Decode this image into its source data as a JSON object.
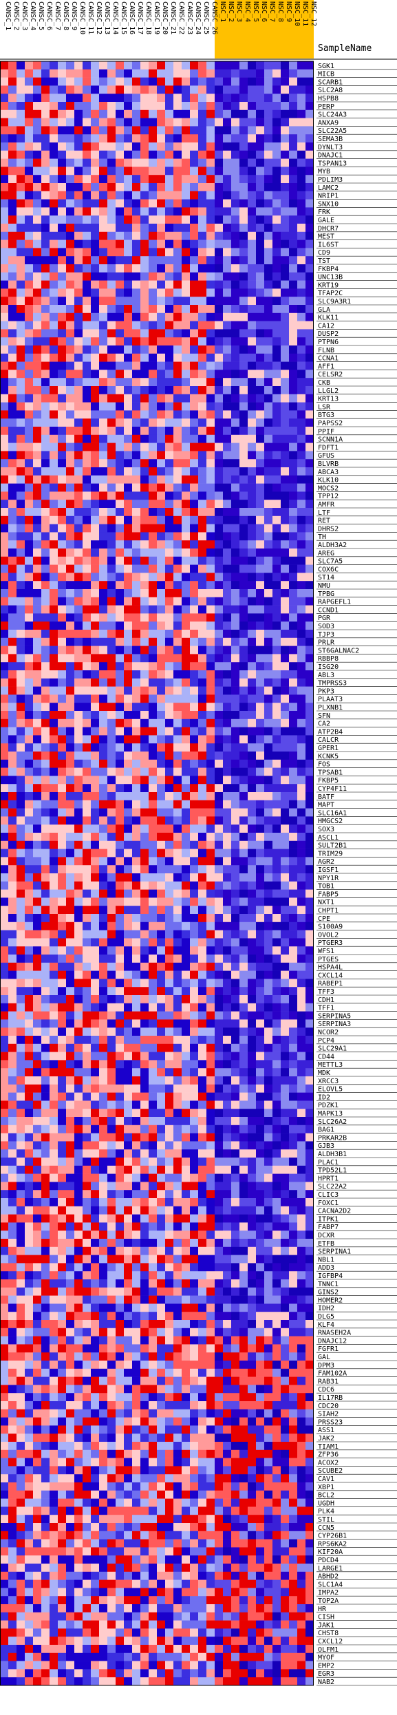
{
  "chart_data": {
    "type": "heatmap",
    "column_header_label": "SampleName",
    "groups": [
      {
        "name": "CANSC",
        "color": "#ffffff",
        "count": 26
      },
      {
        "name": "NSC",
        "color": "#ffc000",
        "count": 12
      }
    ],
    "columns": [
      "CANSC_1",
      "CANSC_2",
      "CANSC_3",
      "CANSC_4",
      "CANSC_5",
      "CANSC_6",
      "CANSC_7",
      "CANSC_8",
      "CANSC_9",
      "CANSC_10",
      "CANSC_11",
      "CANSC_12",
      "CANSC_13",
      "CANSC_14",
      "CANSC_15",
      "CANSC_16",
      "CANSC_17",
      "CANSC_18",
      "CANSC_19",
      "CANSC_20",
      "CANSC_21",
      "CANSC_22",
      "CANSC_23",
      "CANSC_24",
      "CANSC_25",
      "CANSC_26",
      "NSC_1",
      "NSC_2",
      "NSC_3",
      "NSC_4",
      "NSC_5",
      "NSC_6",
      "NSC_7",
      "NSC_8",
      "NSC_9",
      "NSC_10",
      "NSC_11",
      "NSC_12"
    ],
    "rows": [
      "SGK1",
      "MICB",
      "SCARB1",
      "SLC2A8",
      "HSPB8",
      "PERP",
      "SLC24A3",
      "ANXA9",
      "SLC22A5",
      "SEMA3B",
      "DYNLT3",
      "DNAJC1",
      "TSPAN13",
      "MYB",
      "PDLIM3",
      "LAMC2",
      "NRIP1",
      "SNX10",
      "FRK",
      "GALE",
      "DHCR7",
      "MEST",
      "IL6ST",
      "CD9",
      "TST",
      "FKBP4",
      "UNC13B",
      "KRT19",
      "TFAP2C",
      "SLC9A3R1",
      "GLA",
      "KLK11",
      "CA12",
      "DUSP2",
      "PTPN6",
      "FLNB",
      "CCNA1",
      "AFF1",
      "CELSR2",
      "CKB",
      "LLGL2",
      "KRT13",
      "LSR",
      "BTG3",
      "PAPSS2",
      "PPIF",
      "SCNN1A",
      "FDFT1",
      "GFUS",
      "BLVRB",
      "ABCA3",
      "KLK10",
      "MOCS2",
      "TPP12",
      "AMFR",
      "LTF",
      "RET",
      "DHRS2",
      "TH",
      "ALDH3A2",
      "AREG",
      "SLC7A5",
      "COX6C",
      "ST14",
      "NMU",
      "TPBG",
      "RAPGEFL1",
      "CCND1",
      "PGR",
      "SOD3",
      "TJP3",
      "PRLR",
      "ST6GALNAC2",
      "RBBP8",
      "ISG20",
      "ABL3",
      "TMPRSS3",
      "PKP3",
      "PLAAT3",
      "PLXNB1",
      "SFN",
      "CA2",
      "ATP2B4",
      "CALCR",
      "GPER1",
      "KCNK5",
      "FOS",
      "TPSAB1",
      "FKBP5",
      "CYP4F11",
      "BATF",
      "MAPT",
      "SLC16A1",
      "HMGCS2",
      "SOX3",
      "ASCL1",
      "SULT2B1",
      "TRIM29",
      "AGR2",
      "IGSF1",
      "NPY1R",
      "TOB1",
      "FABP5",
      "NXT1",
      "CHPT1",
      "CPE",
      "S100A9",
      "OVOL2",
      "PTGER3",
      "WFS1",
      "PTGES",
      "HSPA4L",
      "CXCL14",
      "RABEP1",
      "TFF3",
      "CDH1",
      "TFF1",
      "SERPINA5",
      "SERPINA3",
      "NCOR2",
      "PCP4",
      "SLC29A1",
      "CD44",
      "METTL3",
      "MDK",
      "XRCC3",
      "ELOVL5",
      "ID2",
      "PDZK1",
      "MAPK13",
      "SLC26A2",
      "BAG1",
      "PRKAR2B",
      "GJB3",
      "ALDH3B1",
      "PLAC1",
      "TPD52L1",
      "HPRT1",
      "SLC22A2",
      "CLIC3",
      "FOXC1",
      "CACNA2D2",
      "ITPK1",
      "FABP7",
      "DCXR",
      "ETFB",
      "SERPINA1",
      "NBL1",
      "ADD3",
      "IGFBP4",
      "TNNC1",
      "GINS2",
      "HOMER2",
      "IDH2",
      "DLG5",
      "KLF4",
      "RNASEH2A",
      "DNAJC12",
      "FGFR1",
      "GAL",
      "DPM3",
      "FAM102A",
      "RAB31",
      "CDC6",
      "IL17RB",
      "CDC20",
      "SIAH2",
      "PRSS23",
      "ASS1",
      "JAK2",
      "TIAM1",
      "ZFP36",
      "ACOX2",
      "SCUBE2",
      "CAV1",
      "XBP1",
      "BCL2",
      "UGDH",
      "PLK4",
      "STIL",
      "CCN5",
      "CYP26B1",
      "RPS6KA2",
      "KIF20A",
      "PDCD4",
      "LARGE1",
      "ABHD2",
      "SLC1A4",
      "IMPA2",
      "TOP2A",
      "HR",
      "CISH",
      "JAK1",
      "CHST8",
      "CXCL12",
      "OLFM1",
      "MYOF",
      "EMP2",
      "EGR3",
      "NAB2"
    ]
  }
}
